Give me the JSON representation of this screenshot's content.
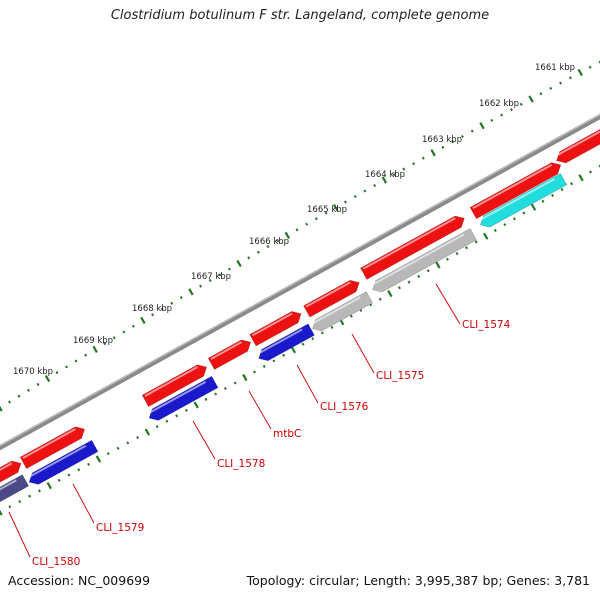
{
  "title": "Clostridium botulinum F str. Langeland, complete genome",
  "footer": {
    "accession": "Accession: NC_009699",
    "summary": "Topology: circular; Length: 3,995,387 bp; Genes: 3,781"
  },
  "colors": {
    "backbone": "#8a8a8a",
    "forward_gene": "#ee1111",
    "reverse_gene": "#1a1acc",
    "gray_gene": "#b8b8b8",
    "cyan_gene": "#22dddd",
    "purple_gene": "#4a4a88",
    "ticks": "#227722",
    "label": "#cc0000"
  },
  "ruler_labels": [
    "1661 kbp",
    "1662 kbp",
    "1663 kbp",
    "1664 kbp",
    "1665 kbp",
    "1666 kbp",
    "1667 kbp",
    "1668 kbp",
    "1669 kbp",
    "1670 kbp"
  ],
  "gene_labels": [
    "CLI_1574",
    "CLI_1575",
    "CLI_1576",
    "mtbC",
    "CLI_1578",
    "CLI_1579",
    "CLI_1580"
  ]
}
